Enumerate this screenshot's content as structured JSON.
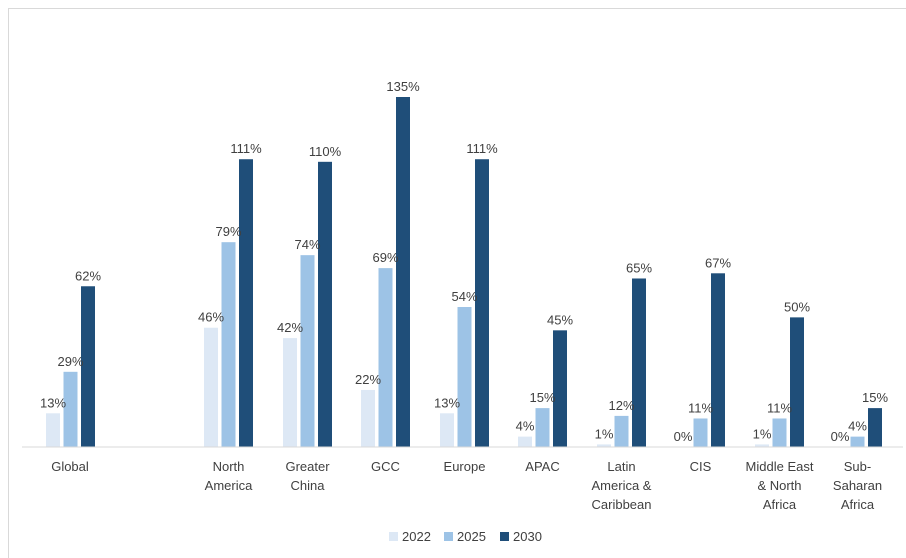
{
  "chart_data": {
    "type": "bar",
    "categories": [
      "Global",
      "North America",
      "Greater China",
      "GCC",
      "Europe",
      "APAC",
      "Latin America & Caribbean",
      "CIS",
      "Middle East & North Africa",
      "Sub-Saharan Africa"
    ],
    "category_lines": [
      [
        "Global"
      ],
      [
        "North",
        "America"
      ],
      [
        "Greater",
        "China"
      ],
      [
        "GCC"
      ],
      [
        "Europe"
      ],
      [
        "APAC"
      ],
      [
        "Latin",
        "America &",
        "Caribbean"
      ],
      [
        "CIS"
      ],
      [
        "Middle East",
        "& North",
        "Africa"
      ],
      [
        "Sub-",
        "Saharan",
        "Africa"
      ]
    ],
    "series": [
      {
        "name": "2022",
        "color": "#dde8f5",
        "values": [
          13,
          46,
          42,
          22,
          13,
          4,
          1,
          0,
          1,
          0
        ]
      },
      {
        "name": "2025",
        "color": "#9dc3e6",
        "values": [
          29,
          79,
          74,
          69,
          54,
          15,
          12,
          11,
          11,
          4
        ]
      },
      {
        "name": "2030",
        "color": "#1f4e79",
        "values": [
          62,
          111,
          110,
          135,
          111,
          45,
          65,
          67,
          50,
          15
        ]
      }
    ],
    "value_suffix": "%",
    "ylim": [
      0,
      135
    ],
    "grid": false,
    "legend_position": "bottom"
  }
}
